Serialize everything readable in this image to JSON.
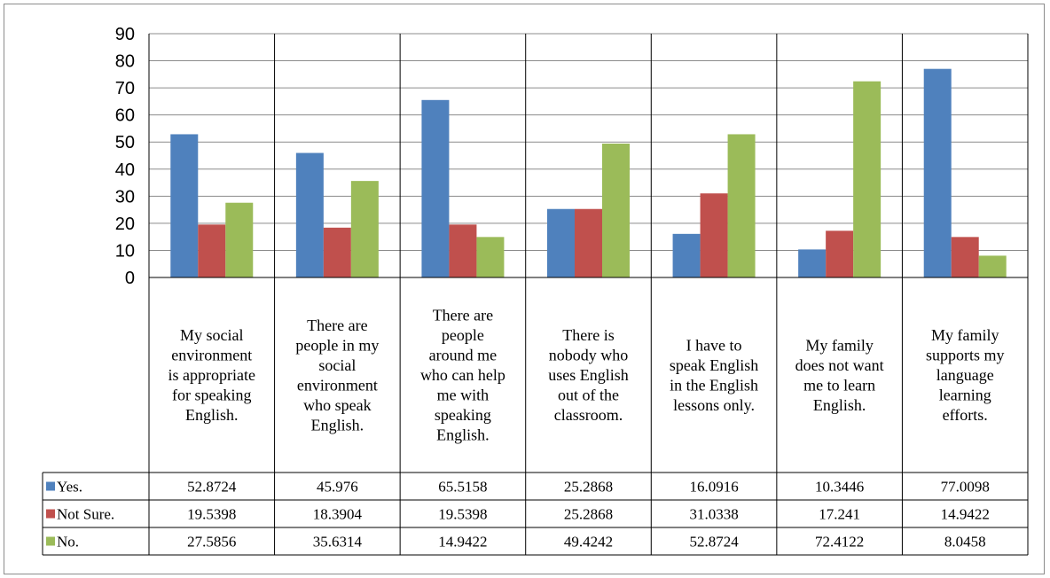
{
  "chart_data": {
    "type": "bar",
    "title": "",
    "xlabel": "",
    "ylabel": "",
    "ylim": [
      0,
      90
    ],
    "yticks": [
      0,
      10,
      20,
      30,
      40,
      50,
      60,
      70,
      80,
      90
    ],
    "grid": true,
    "legend": "data-table",
    "categories": [
      [
        "My social",
        "environment",
        "is appropriate",
        "for speaking",
        "English."
      ],
      [
        "There are",
        "people in my",
        "social",
        "environment",
        "who speak",
        "English."
      ],
      [
        "There are",
        "people",
        "around me",
        "who can help",
        "me with",
        "speaking",
        "English."
      ],
      [
        "There is",
        "nobody who",
        "uses English",
        "out of the",
        "classroom."
      ],
      [
        "I have to",
        "speak English",
        "in the English",
        "lessons only."
      ],
      [
        "My family",
        "does not want",
        "me to learn",
        "English."
      ],
      [
        "My family",
        "supports my",
        "language",
        "learning",
        "efforts."
      ]
    ],
    "series": [
      {
        "name": "Yes.",
        "color": "#4f81bd",
        "values": [
          52.8724,
          45.976,
          65.5158,
          25.2868,
          16.0916,
          10.3446,
          77.0098
        ],
        "labels": [
          "52.8724",
          "45.976",
          "65.5158",
          "25.2868",
          "16.0916",
          "10.3446",
          "77.0098"
        ]
      },
      {
        "name": "Not Sure.",
        "color": "#c0504d",
        "values": [
          19.5398,
          18.3904,
          19.5398,
          25.2868,
          31.0338,
          17.241,
          14.9422
        ],
        "labels": [
          "19.5398",
          "18.3904",
          "19.5398",
          "25.2868",
          "31.0338",
          "17.241",
          "14.9422"
        ]
      },
      {
        "name": "No.",
        "color": "#9bbb59",
        "values": [
          27.5856,
          35.6314,
          14.9422,
          49.4242,
          52.8724,
          72.4122,
          8.0458
        ],
        "labels": [
          "27.5856",
          "35.6314",
          "14.9422",
          "49.4242",
          "52.8724",
          "72.4122",
          "8.0458"
        ]
      }
    ]
  }
}
